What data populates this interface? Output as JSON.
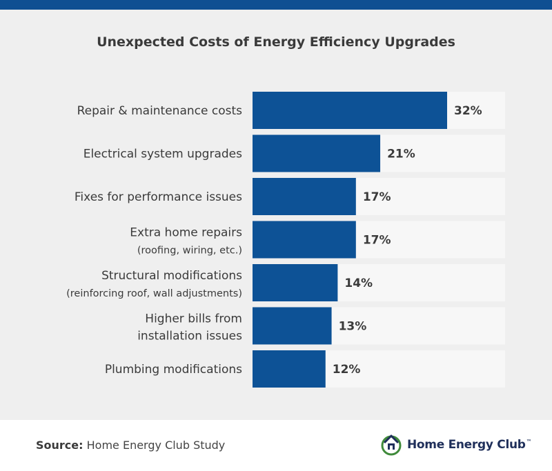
{
  "colors": {
    "top_stripe": "#0f4f92",
    "panel_background": "#efefef",
    "bar_track": "#f7f7f7",
    "bar_fill": "#0d5296",
    "label_text": "#3a3a3a",
    "value_text": "#3a3a3a"
  },
  "header": {
    "title": "Unexpected Costs of Energy Efficiency Upgrades"
  },
  "chart_data": {
    "type": "bar",
    "orientation": "horizontal",
    "title": "Unexpected Costs of Energy Efficiency Upgrades",
    "unit": "%",
    "max_value": 32,
    "categories": [
      {
        "lines": [
          "Repair & maintenance costs"
        ],
        "value": 32,
        "value_label": "32%"
      },
      {
        "lines": [
          "Electrical system upgrades"
        ],
        "value": 21,
        "value_label": "21%"
      },
      {
        "lines": [
          "Fixes for performance issues"
        ],
        "value": 17,
        "value_label": "17%"
      },
      {
        "lines": [
          "Extra home repairs",
          "(roofing, wiring, etc.)"
        ],
        "value": 17,
        "value_label": "17%"
      },
      {
        "lines": [
          "Structural modifications",
          "(reinforcing roof, wall adjustments)"
        ],
        "value": 14,
        "value_label": "14%"
      },
      {
        "lines": [
          "Higher bills from",
          "installation issues"
        ],
        "value": 13,
        "value_label": "13%"
      },
      {
        "lines": [
          "Plumbing modifications"
        ],
        "value": 12,
        "value_label": "12%"
      }
    ]
  },
  "footer": {
    "source_label": "Source:",
    "source_text": "Home Energy Club Study",
    "brand_name": "Home Energy Club",
    "brand_tm": "™",
    "logo_icon": "house-leaf-icon"
  }
}
